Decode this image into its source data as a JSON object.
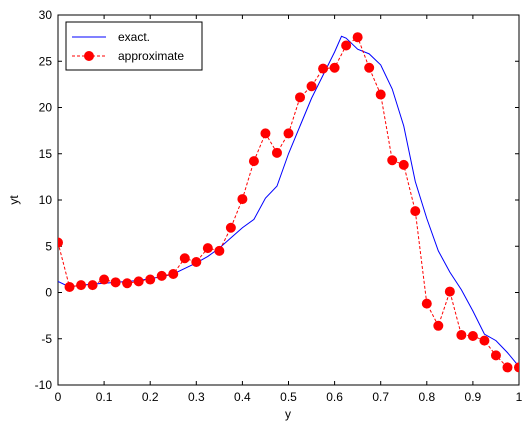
{
  "chart_data": {
    "type": "line",
    "xlabel": "y",
    "ylabel": "yt",
    "xlim": [
      0,
      1
    ],
    "ylim": [
      -10,
      30
    ],
    "xticks": [
      "0",
      "0.1",
      "0.2",
      "0.3",
      "0.4",
      "0.5",
      "0.6",
      "0.7",
      "0.8",
      "0.9",
      "1"
    ],
    "yticks": [
      "-10",
      "-5",
      "0",
      "5",
      "10",
      "15",
      "20",
      "25",
      "30"
    ],
    "grid": false,
    "legend_position": "top-left",
    "series": [
      {
        "name": "exact.",
        "style": "solid",
        "color": "#0000ff",
        "x": [
          0,
          0.025,
          0.05,
          0.075,
          0.1,
          0.125,
          0.15,
          0.175,
          0.2,
          0.225,
          0.25,
          0.275,
          0.3,
          0.325,
          0.35,
          0.375,
          0.4,
          0.425,
          0.45,
          0.475,
          0.5,
          0.525,
          0.55,
          0.575,
          0.6,
          0.615,
          0.625,
          0.65,
          0.675,
          0.7,
          0.725,
          0.75,
          0.775,
          0.8,
          0.825,
          0.85,
          0.875,
          0.9,
          0.925,
          0.95,
          0.975,
          1
        ],
        "y": [
          1.2,
          0.6,
          0.8,
          0.9,
          1.0,
          1.1,
          1.2,
          1.3,
          1.5,
          1.7,
          2.0,
          2.6,
          3.2,
          3.9,
          4.8,
          5.9,
          7.0,
          7.9,
          10.2,
          11.5,
          15.0,
          18.0,
          21.0,
          23.5,
          26.0,
          27.7,
          27.5,
          26.3,
          25.8,
          24.6,
          22.0,
          18.0,
          12.0,
          8.0,
          4.5,
          2.2,
          0.3,
          -2.0,
          -4.5,
          -5.2,
          -6.5,
          -8.0
        ]
      },
      {
        "name": "approximate",
        "style": "dashed",
        "marker": "circle",
        "color": "#ff0000",
        "x": [
          0,
          0.025,
          0.05,
          0.075,
          0.1,
          0.125,
          0.15,
          0.175,
          0.2,
          0.225,
          0.25,
          0.275,
          0.3,
          0.325,
          0.35,
          0.375,
          0.4,
          0.425,
          0.45,
          0.475,
          0.5,
          0.525,
          0.55,
          0.575,
          0.6,
          0.625,
          0.65,
          0.675,
          0.7,
          0.725,
          0.75,
          0.775,
          0.8,
          0.825,
          0.85,
          0.875,
          0.9,
          0.925,
          0.95,
          0.975,
          1
        ],
        "y": [
          5.4,
          0.6,
          0.8,
          0.8,
          1.4,
          1.1,
          1.0,
          1.2,
          1.4,
          1.8,
          2.0,
          3.7,
          3.3,
          4.8,
          4.5,
          7.0,
          10.1,
          14.2,
          17.2,
          15.1,
          17.2,
          21.1,
          22.3,
          24.2,
          24.3,
          26.7,
          27.6,
          24.3,
          21.4,
          14.3,
          13.8,
          8.8,
          -1.2,
          -3.6,
          0.1,
          -4.6,
          -4.7,
          -5.2,
          -6.8,
          -8.1,
          -8.1
        ]
      }
    ]
  }
}
